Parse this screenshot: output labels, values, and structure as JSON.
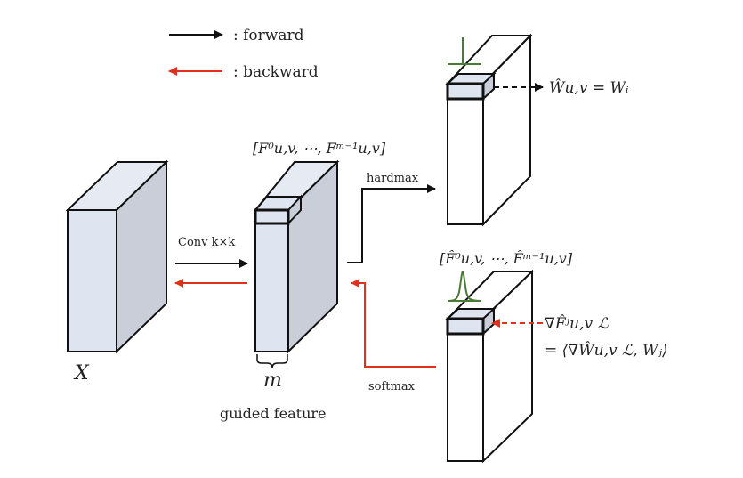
{
  "legend": {
    "forward_label": ": forward",
    "backward_label": ": backward"
  },
  "input": {
    "label": "X"
  },
  "conv": {
    "label": "Conv k×k"
  },
  "guided": {
    "seq_label": "[F⁰u,v, ⋯, Fᵐ⁻¹u,v]",
    "channel_label": "m",
    "caption": "guided feature"
  },
  "hardmax": {
    "label": "hardmax",
    "eq": "Ŵu,v = Wᵢ"
  },
  "softmax": {
    "label": "softmax",
    "seq_label": "[F̂⁰u,v, ⋯, F̂ᵐ⁻¹u,v]",
    "grad_line1": "∇F̂ʲu,v ℒ",
    "grad_line2": "= ⟨∇Ŵu,v ℒ, Wⱼ⟩"
  },
  "colors": {
    "forward": "#111111",
    "backward": "#e0301e",
    "block_face": "#dde3f0",
    "block_side": "#c6ccd8",
    "peak": "#4a7a35"
  }
}
